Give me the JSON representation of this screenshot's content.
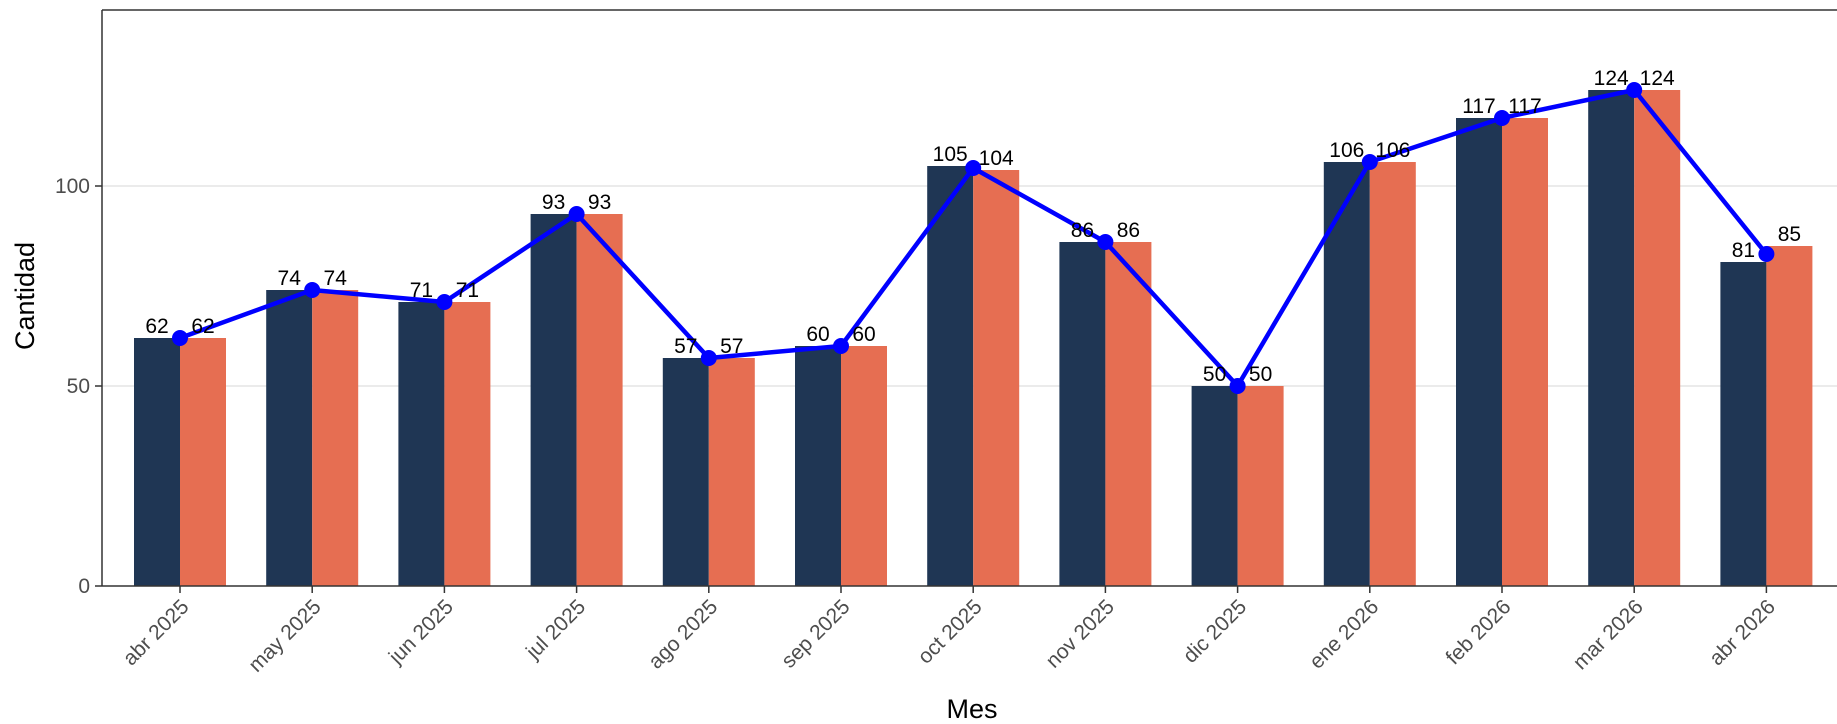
{
  "chart_data": {
    "type": "bar",
    "xlabel": "Mes",
    "ylabel": "Cantidad",
    "categories": [
      "abr 2025",
      "may 2025",
      "jun 2025",
      "jul 2025",
      "ago 2025",
      "sep 2025",
      "oct 2025",
      "nov 2025",
      "dic 2025",
      "ene 2026",
      "feb 2026",
      "mar 2026",
      "abr 2026"
    ],
    "ylim": [
      0,
      144
    ],
    "yticks": [
      0,
      50,
      100
    ],
    "grid": "horizontal major",
    "legend": "none",
    "series": [
      {
        "type": "bar",
        "color": "#1f3654",
        "values": [
          62,
          74,
          71,
          93,
          57,
          60,
          105,
          86,
          50,
          106,
          117,
          124,
          81
        ]
      },
      {
        "type": "bar",
        "color": "#e66e52",
        "values": [
          62,
          74,
          71,
          93,
          57,
          60,
          104,
          86,
          50,
          106,
          117,
          124,
          85
        ]
      },
      {
        "type": "line",
        "color": "#0000ff",
        "values": [
          62,
          74,
          71,
          93,
          57,
          60,
          104.5,
          86,
          50,
          106,
          117,
          124,
          83
        ]
      }
    ]
  }
}
